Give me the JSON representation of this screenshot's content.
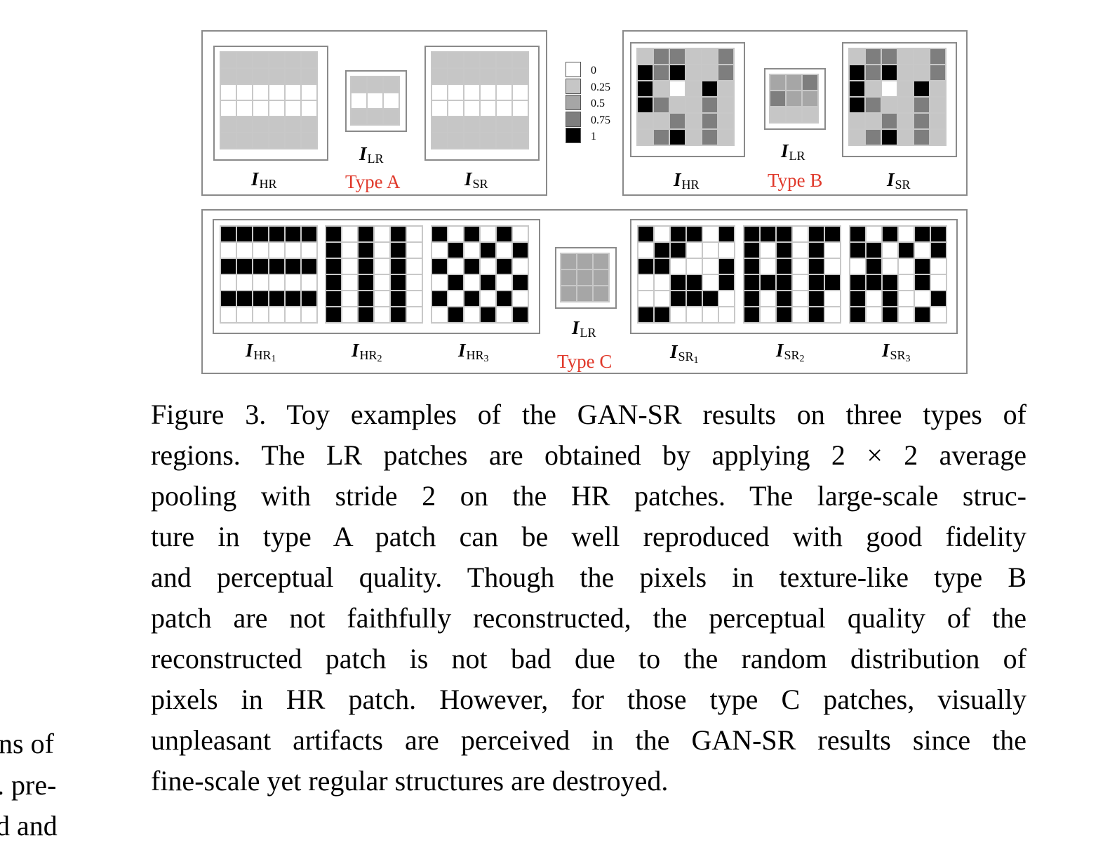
{
  "legend": {
    "items": [
      {
        "value": "0",
        "color": "#ffffff"
      },
      {
        "value": "0.25",
        "color": "#c6c6c6"
      },
      {
        "value": "0.5",
        "color": "#a6a6a6"
      },
      {
        "value": "0.75",
        "color": "#7e7e7e"
      },
      {
        "value": "1",
        "color": "#000000"
      }
    ]
  },
  "labels": {
    "I": "I",
    "hr": "HR",
    "lr": "LR",
    "sr": "SR",
    "n1": "1",
    "n2": "2",
    "n3": "3",
    "type_a": "Type A",
    "type_b": "Type B",
    "type_c": "Type C"
  },
  "patches": {
    "a_hr": [
      "111111",
      "111111",
      "000000",
      "000000",
      "111111",
      "111111"
    ],
    "a_lr": [
      "111",
      "000",
      "111"
    ],
    "a_sr": [
      "111111",
      "111111",
      "000000",
      "000000",
      "111111",
      "111111"
    ],
    "b_hr": [
      "133113",
      "434113",
      "410141",
      "431131",
      "113131",
      "134131"
    ],
    "b_lr": [
      "223",
      "322",
      "111"
    ],
    "b_sr": [
      "133113",
      "434113",
      "410141",
      "431131",
      "113131",
      "134131"
    ],
    "c_lr": [
      "222",
      "222",
      "222"
    ],
    "c_hr1": [
      "444444",
      "000000",
      "444444",
      "000000",
      "444444",
      "000000"
    ],
    "c_hr2": [
      "404040",
      "404040",
      "404040",
      "404040",
      "404040",
      "404040"
    ],
    "c_hr3": [
      "404040",
      "040404",
      "404040",
      "040404",
      "404040",
      "040404"
    ],
    "c_sr1": [
      "404404",
      "044000",
      "440004",
      "004404",
      "004440",
      "440000"
    ],
    "c_sr2": [
      "444044",
      "404040",
      "404040",
      "444044",
      "404040",
      "404040"
    ],
    "c_sr3": [
      "404044",
      "440404",
      "040040",
      "444040",
      "404004",
      "404040"
    ]
  },
  "caption": {
    "lines": [
      "Figure 3.  Toy examples of the GAN-SR results on three types of",
      "regions. The LR patches are obtained by applying 2 × 2 average",
      "pooling with stride 2 on the HR patches.  The large-scale struc-",
      "ture in type A patch can be well reproduced with good fidelity",
      "and perceptual quality.  Though the pixels in texture-like type B",
      "patch are not faithfully reconstructed, the perceptual quality of the",
      "reconstructed patch is not bad due to the random distribution of",
      "pixels in HR patch.  However, for those type C patches, visually",
      "unpleasant artifacts are perceived in the GAN-SR results since the",
      "fine-scale yet regular structures are destroyed."
    ]
  },
  "side_fragments": [
    "ns  of",
    ". pre-",
    "d  and"
  ]
}
